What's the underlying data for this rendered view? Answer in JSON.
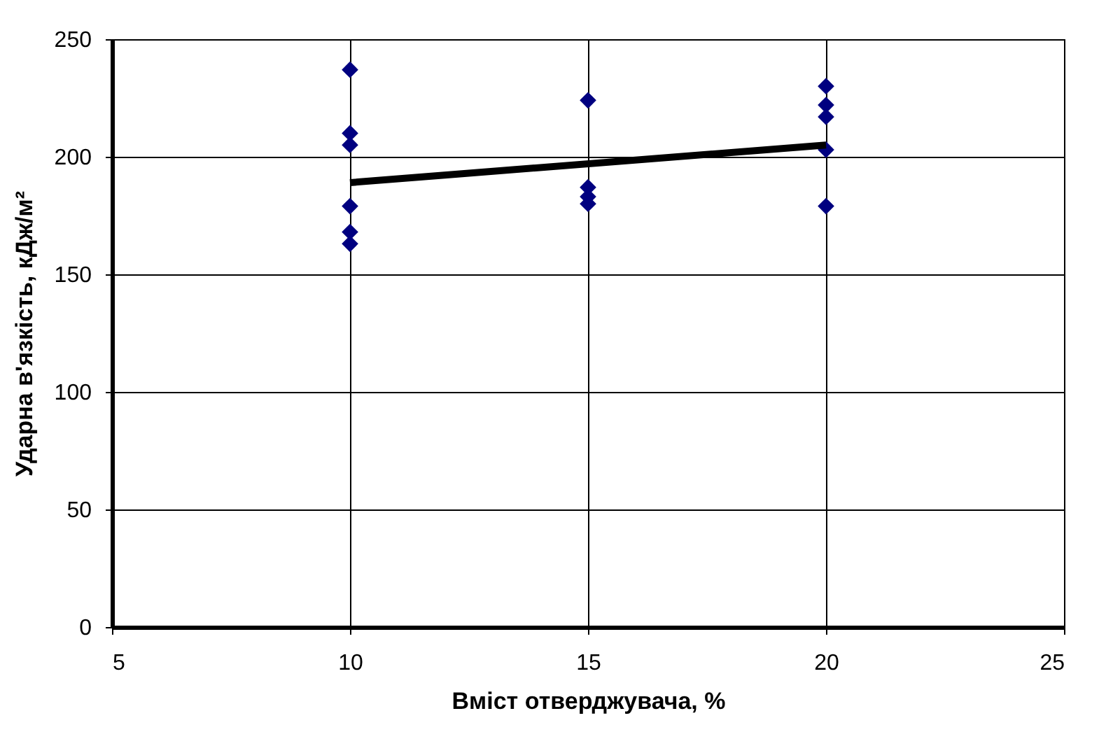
{
  "chart_data": {
    "type": "scatter",
    "xlabel": "Вміст отверджувача, %",
    "ylabel": "Ударна в'язкість, кДж/м²",
    "xlim": [
      5,
      25
    ],
    "ylim": [
      0,
      250
    ],
    "xticks": [
      5,
      10,
      15,
      20,
      25
    ],
    "yticks": [
      0,
      50,
      100,
      150,
      200,
      250
    ],
    "grid": true,
    "x": [
      10,
      10,
      10,
      10,
      10,
      10,
      15,
      15,
      15,
      15,
      20,
      20,
      20,
      20,
      20
    ],
    "series": [
      {
        "color": "#000080",
        "marker": "diamond",
        "values": [
          237,
          210,
          205,
          179,
          168,
          163,
          224,
          187,
          183,
          180,
          230,
          222,
          217,
          203,
          179
        ]
      },
      {
        "type": "line",
        "color": "#000000",
        "x": [
          10,
          20
        ],
        "values": [
          189,
          205
        ],
        "line_style": "solid"
      }
    ]
  }
}
